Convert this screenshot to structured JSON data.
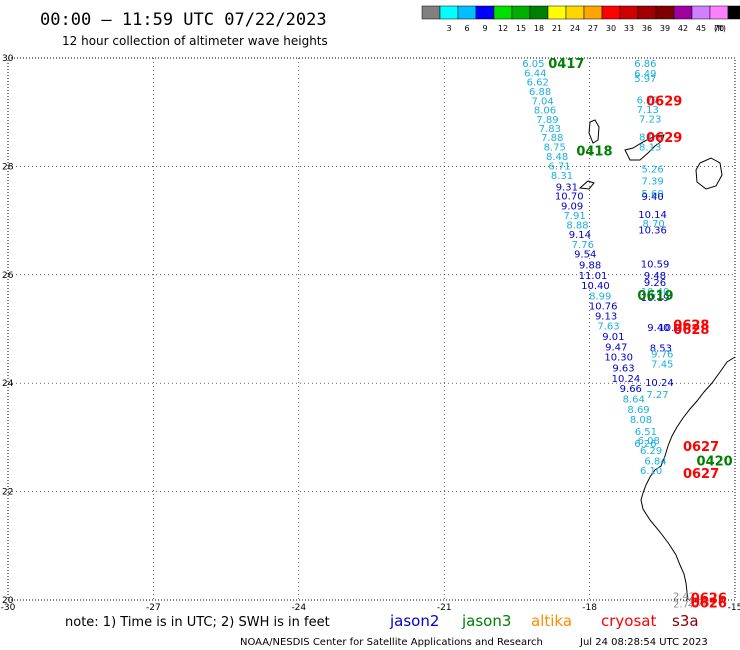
{
  "header": {
    "title": "00:00 – 11:59 UTC 07/22/2023",
    "subtitle": "12 hour collection of altimeter wave heights"
  },
  "scale": {
    "unit_label": "(ft)",
    "bins": [
      {
        "label": "",
        "color": "#808080"
      },
      {
        "label": "3",
        "color": "#00ffff"
      },
      {
        "label": "6",
        "color": "#00bfff"
      },
      {
        "label": "9",
        "color": "#0000ff"
      },
      {
        "label": "12",
        "color": "#00e000"
      },
      {
        "label": "15",
        "color": "#00b000"
      },
      {
        "label": "18",
        "color": "#008000"
      },
      {
        "label": "21",
        "color": "#ffff00"
      },
      {
        "label": "24",
        "color": "#ffd700"
      },
      {
        "label": "27",
        "color": "#ffa500"
      },
      {
        "label": "30",
        "color": "#ff0000"
      },
      {
        "label": "33",
        "color": "#d00000"
      },
      {
        "label": "36",
        "color": "#a00000"
      },
      {
        "label": "39",
        "color": "#800000"
      },
      {
        "label": "42",
        "color": "#a000a0"
      },
      {
        "label": "45",
        "color": "#d080ff"
      },
      {
        "label": "70",
        "color": "#ff80ff"
      },
      {
        "label": "",
        "color": "#000000"
      }
    ]
  },
  "map": {
    "lon_range": [
      -30,
      -15
    ],
    "lat_range": [
      20,
      30
    ],
    "lon_ticks": [
      "-30",
      "-27",
      "-24",
      "-21",
      "-18",
      "-15"
    ],
    "lat_ticks": [
      "30",
      "28",
      "26",
      "24",
      "22",
      "20"
    ],
    "colors": {
      "jason2": "#0000cd",
      "jason3": "#008000",
      "altika": "#ff8c00",
      "cryosat": "#ff0000",
      "s3a": "#8b0000",
      "light": "#1ab0e0",
      "gray": "#909090"
    }
  },
  "observations": [
    {
      "lon": -19.16,
      "lat": 29.91,
      "v": "6.05",
      "c": "light"
    },
    {
      "lon": -19.12,
      "lat": 29.73,
      "v": "6.44",
      "c": "light"
    },
    {
      "lon": -19.07,
      "lat": 29.57,
      "v": "6.62",
      "c": "light"
    },
    {
      "lon": -19.02,
      "lat": 29.39,
      "v": "6.88",
      "c": "light"
    },
    {
      "lon": -18.97,
      "lat": 29.22,
      "v": "7.04",
      "c": "light"
    },
    {
      "lon": -18.92,
      "lat": 29.05,
      "v": "8.06",
      "c": "light"
    },
    {
      "lon": -18.87,
      "lat": 28.87,
      "v": "7.89",
      "c": "light"
    },
    {
      "lon": -18.82,
      "lat": 28.71,
      "v": "7.83",
      "c": "light"
    },
    {
      "lon": -18.77,
      "lat": 28.54,
      "v": "7.88",
      "c": "light"
    },
    {
      "lon": -18.72,
      "lat": 28.37,
      "v": "8.75",
      "c": "light"
    },
    {
      "lon": -18.67,
      "lat": 28.19,
      "v": "8.48",
      "c": "light"
    },
    {
      "lon": -18.62,
      "lat": 28.02,
      "v": "6.71",
      "c": "light"
    },
    {
      "lon": -18.57,
      "lat": 27.84,
      "v": "8.31",
      "c": "light"
    },
    {
      "lon": -18.47,
      "lat": 27.63,
      "v": "9.31",
      "c": "jason2"
    },
    {
      "lon": -18.42,
      "lat": 27.46,
      "v": "10.70",
      "c": "jason2"
    },
    {
      "lon": -18.36,
      "lat": 27.28,
      "v": "9.09",
      "c": "jason2"
    },
    {
      "lon": -18.31,
      "lat": 27.1,
      "v": "7.91",
      "c": "light"
    },
    {
      "lon": -18.25,
      "lat": 26.93,
      "v": "8.88",
      "c": "light"
    },
    {
      "lon": -18.2,
      "lat": 26.75,
      "v": "9.14",
      "c": "jason2"
    },
    {
      "lon": -18.14,
      "lat": 26.57,
      "v": "7.76",
      "c": "light"
    },
    {
      "lon": -18.09,
      "lat": 26.39,
      "v": "9.54",
      "c": "jason2"
    },
    {
      "lon": -17.99,
      "lat": 26.19,
      "v": "9.88",
      "c": "jason2"
    },
    {
      "lon": -17.93,
      "lat": 26.0,
      "v": "11.01",
      "c": "jason2"
    },
    {
      "lon": -17.88,
      "lat": 25.81,
      "v": "10.40",
      "c": "jason2"
    },
    {
      "lon": -17.78,
      "lat": 25.62,
      "v": "8.99",
      "c": "light"
    },
    {
      "lon": -17.72,
      "lat": 25.43,
      "v": "10.76",
      "c": "jason2"
    },
    {
      "lon": -17.66,
      "lat": 25.25,
      "v": "9.13",
      "c": "jason2"
    },
    {
      "lon": -17.61,
      "lat": 25.06,
      "v": "7.63",
      "c": "light"
    },
    {
      "lon": -17.51,
      "lat": 24.87,
      "v": "9.01",
      "c": "jason2"
    },
    {
      "lon": -17.45,
      "lat": 24.68,
      "v": "9.47",
      "c": "jason2"
    },
    {
      "lon": -17.4,
      "lat": 24.49,
      "v": "10.30",
      "c": "jason2"
    },
    {
      "lon": -17.3,
      "lat": 24.29,
      "v": "9.63",
      "c": "jason2"
    },
    {
      "lon": -17.25,
      "lat": 24.1,
      "v": "10.24",
      "c": "jason2"
    },
    {
      "lon": -17.15,
      "lat": 23.91,
      "v": "9.66",
      "c": "jason2"
    },
    {
      "lon": -17.09,
      "lat": 23.72,
      "v": "8.64",
      "c": "light"
    },
    {
      "lon": -16.99,
      "lat": 23.52,
      "v": "8.69",
      "c": "light"
    },
    {
      "lon": -16.94,
      "lat": 23.34,
      "v": "8.08",
      "c": "light"
    },
    {
      "lon": -16.84,
      "lat": 23.12,
      "v": "6.51",
      "c": "light"
    },
    {
      "lon": -16.78,
      "lat": 22.95,
      "v": "6.08",
      "c": "light"
    },
    {
      "lon": -16.73,
      "lat": 22.77,
      "v": "6.29",
      "c": "light"
    },
    {
      "lon": -16.64,
      "lat": 22.57,
      "v": "6.84",
      "c": "light"
    },
    {
      "lon": -16.73,
      "lat": 22.4,
      "v": "6.10",
      "c": "light"
    },
    {
      "lon": -16.85,
      "lat": 22.9,
      "v": "6.26",
      "c": "light"
    },
    {
      "lon": -16.85,
      "lat": 29.91,
      "v": "6.86",
      "c": "light"
    },
    {
      "lon": -16.85,
      "lat": 29.72,
      "v": "6.49",
      "c": "light"
    },
    {
      "lon": -16.85,
      "lat": 29.63,
      "v": "5.97",
      "c": "light"
    },
    {
      "lon": -16.8,
      "lat": 29.23,
      "v": "6.77",
      "c": "light"
    },
    {
      "lon": -16.8,
      "lat": 29.06,
      "v": "7.13",
      "c": "light"
    },
    {
      "lon": -16.75,
      "lat": 28.88,
      "v": "7.23",
      "c": "light"
    },
    {
      "lon": -16.75,
      "lat": 28.55,
      "v": "8.08",
      "c": "light"
    },
    {
      "lon": -16.75,
      "lat": 28.37,
      "v": "8.13",
      "c": "light"
    },
    {
      "lon": -16.7,
      "lat": 27.96,
      "v": "5.26",
      "c": "light"
    },
    {
      "lon": -16.7,
      "lat": 27.74,
      "v": "7.39",
      "c": "light"
    },
    {
      "lon": -16.7,
      "lat": 27.51,
      "v": "5.60",
      "c": "light"
    },
    {
      "lon": -16.7,
      "lat": 27.45,
      "v": "9.40",
      "c": "jason2"
    },
    {
      "lon": -16.7,
      "lat": 27.12,
      "v": "10.14",
      "c": "jason2"
    },
    {
      "lon": -16.68,
      "lat": 26.96,
      "v": "8.70",
      "c": "light"
    },
    {
      "lon": -16.7,
      "lat": 26.84,
      "v": "10.36",
      "c": "jason2"
    },
    {
      "lon": -16.65,
      "lat": 26.21,
      "v": "10.59",
      "c": "jason2"
    },
    {
      "lon": -16.65,
      "lat": 26.0,
      "v": "9.48",
      "c": "jason2"
    },
    {
      "lon": -16.65,
      "lat": 25.87,
      "v": "9.26",
      "c": "jason2"
    },
    {
      "lon": -16.65,
      "lat": 25.7,
      "v": "10.40",
      "c": "light"
    },
    {
      "lon": -16.65,
      "lat": 25.59,
      "v": "10.19",
      "c": "jason2"
    },
    {
      "lon": -16.58,
      "lat": 25.04,
      "v": "9.40",
      "c": "jason2"
    },
    {
      "lon": -16.35,
      "lat": 25.04,
      "v": "10.2",
      "c": "jason2"
    },
    {
      "lon": -16.53,
      "lat": 24.66,
      "v": "8.53",
      "c": "jason2"
    },
    {
      "lon": -16.5,
      "lat": 24.55,
      "v": "9.76",
      "c": "light"
    },
    {
      "lon": -16.5,
      "lat": 24.36,
      "v": "7.45",
      "c": "light"
    },
    {
      "lon": -16.56,
      "lat": 24.02,
      "v": "10.24",
      "c": "jason2"
    },
    {
      "lon": -16.6,
      "lat": 23.8,
      "v": "7.27",
      "c": "light"
    },
    {
      "lon": -16.05,
      "lat": 20.08,
      "v": "2.42",
      "c": "gray"
    },
    {
      "lon": -16.05,
      "lat": 19.94,
      "v": "2.77",
      "c": "gray"
    },
    {
      "lon": -15.75,
      "lat": 19.96,
      "v": "2.78",
      "c": "gray"
    }
  ],
  "passes": [
    {
      "lon": -18.48,
      "lat": 29.91,
      "t": "0417",
      "c": "jason3"
    },
    {
      "lon": -17.9,
      "lat": 28.29,
      "t": "0418",
      "c": "jason3"
    },
    {
      "lon": -16.46,
      "lat": 29.22,
      "t": "0629",
      "c": "cryosat"
    },
    {
      "lon": -16.46,
      "lat": 28.54,
      "t": "0629",
      "c": "cryosat"
    },
    {
      "lon": -16.64,
      "lat": 25.63,
      "t": "0619",
      "c": "jason3"
    },
    {
      "lon": -15.9,
      "lat": 25.08,
      "t": "0628",
      "c": "cryosat"
    },
    {
      "lon": -15.9,
      "lat": 25.0,
      "t": "0628",
      "c": "cryosat"
    },
    {
      "lon": -15.7,
      "lat": 22.84,
      "t": "0627",
      "c": "cryosat"
    },
    {
      "lon": -15.42,
      "lat": 22.57,
      "t": "0420",
      "c": "jason3"
    },
    {
      "lon": -15.7,
      "lat": 22.34,
      "t": "0627",
      "c": "cryosat"
    },
    {
      "lon": -15.54,
      "lat": 20.05,
      "t": "0626",
      "c": "cryosat"
    },
    {
      "lon": -15.54,
      "lat": 19.95,
      "t": "0626",
      "c": "cryosat"
    }
  ],
  "footer": {
    "note": "note: 1) Time is in UTC; 2) SWH is in feet",
    "satellites": [
      {
        "name": "jason2",
        "color": "#0000cd"
      },
      {
        "name": "jason3",
        "color": "#008000"
      },
      {
        "name": "altika",
        "color": "#ff8c00"
      },
      {
        "name": "cryosat",
        "color": "#ff0000"
      },
      {
        "name": "s3a",
        "color": "#8b0000"
      }
    ],
    "credit": "NOAA/NESDIS Center for Satellite Applications and Research",
    "timestamp": "Jul 24 08:28:54 UTC 2023"
  }
}
